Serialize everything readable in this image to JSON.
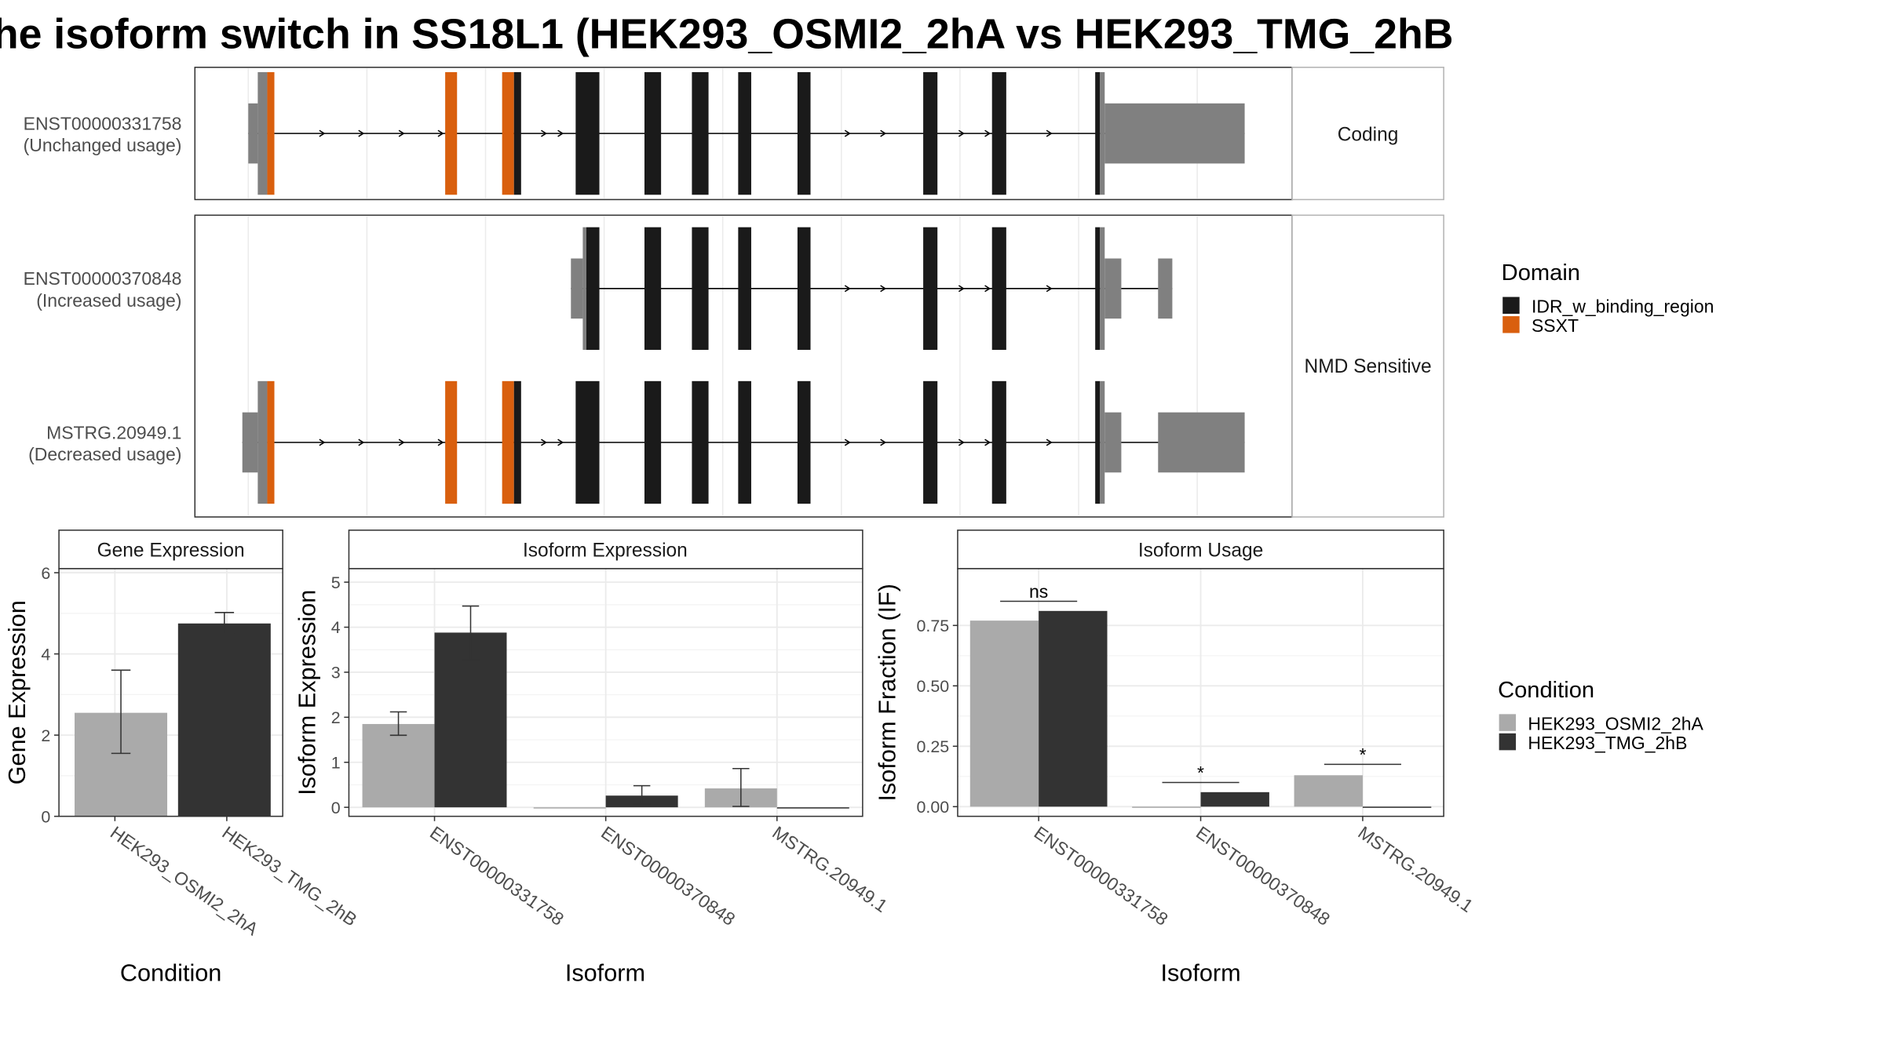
{
  "title": "he isoform switch in SS18L1 (HEK293_OSMI2_2hA vs HEK293_TMG_2hB",
  "colors": {
    "idr": "#1a1a1a",
    "ssxt": "#d95f0e",
    "utr": "#808080",
    "cond_a": "#aaaaaa",
    "cond_b": "#333333",
    "grid": "#ebebeb",
    "frame": "#333333",
    "strip_border": "#b3b3b3"
  },
  "transcripts": [
    {
      "id": "ENST00000331758",
      "usage": "(Unchanged usage)",
      "panel": "Coding",
      "exons": [
        {
          "start": 1000,
          "end": 1008,
          "type": "utr"
        },
        {
          "start": 1008,
          "end": 1016,
          "type": "cds"
        },
        {
          "start": 1016,
          "end": 1022,
          "type": "SSXT"
        },
        {
          "start": 1166,
          "end": 1176,
          "type": "SSXT"
        },
        {
          "start": 1214,
          "end": 1224,
          "type": "SSXT"
        },
        {
          "start": 1224,
          "end": 1230,
          "type": "IDR"
        },
        {
          "start": 1276,
          "end": 1296,
          "type": "IDR"
        },
        {
          "start": 1334,
          "end": 1348,
          "type": "IDR"
        },
        {
          "start": 1374,
          "end": 1388,
          "type": "IDR"
        },
        {
          "start": 1413,
          "end": 1424,
          "type": "IDR"
        },
        {
          "start": 1463,
          "end": 1474,
          "type": "IDR"
        },
        {
          "start": 1569,
          "end": 1581,
          "type": "IDR"
        },
        {
          "start": 1627,
          "end": 1639,
          "type": "IDR"
        },
        {
          "start": 1714,
          "end": 1718,
          "type": "IDR"
        },
        {
          "start": 1718,
          "end": 1722,
          "type": "cds"
        },
        {
          "start": 1722,
          "end": 1840,
          "type": "utr"
        }
      ],
      "arrows": [
        1063,
        1096,
        1130,
        1163,
        1250,
        1264,
        1506,
        1536,
        1602,
        1624,
        1676
      ]
    },
    {
      "id": "ENST00000370848",
      "usage": "(Increased usage)",
      "panel": "NMD Sensitive",
      "exons": [
        {
          "start": 1272,
          "end": 1282,
          "type": "utr"
        },
        {
          "start": 1282,
          "end": 1285,
          "type": "cds"
        },
        {
          "start": 1285,
          "end": 1296,
          "type": "IDR"
        },
        {
          "start": 1334,
          "end": 1348,
          "type": "IDR"
        },
        {
          "start": 1374,
          "end": 1388,
          "type": "IDR"
        },
        {
          "start": 1413,
          "end": 1424,
          "type": "IDR"
        },
        {
          "start": 1463,
          "end": 1474,
          "type": "IDR"
        },
        {
          "start": 1569,
          "end": 1581,
          "type": "IDR"
        },
        {
          "start": 1627,
          "end": 1639,
          "type": "IDR"
        },
        {
          "start": 1714,
          "end": 1718,
          "type": "IDR"
        },
        {
          "start": 1718,
          "end": 1722,
          "type": "cds"
        },
        {
          "start": 1722,
          "end": 1736,
          "type": "utr"
        },
        {
          "start": 1767,
          "end": 1779,
          "type": "utr"
        }
      ],
      "arrows": [
        1506,
        1536,
        1602,
        1624,
        1676
      ]
    },
    {
      "id": "MSTRG.20949.1",
      "usage": "(Decreased usage)",
      "panel": "NMD Sensitive",
      "exons": [
        {
          "start": 995,
          "end": 1008,
          "type": "utr"
        },
        {
          "start": 1008,
          "end": 1016,
          "type": "cds"
        },
        {
          "start": 1016,
          "end": 1022,
          "type": "SSXT"
        },
        {
          "start": 1166,
          "end": 1176,
          "type": "SSXT"
        },
        {
          "start": 1214,
          "end": 1224,
          "type": "SSXT"
        },
        {
          "start": 1224,
          "end": 1230,
          "type": "IDR"
        },
        {
          "start": 1276,
          "end": 1296,
          "type": "IDR"
        },
        {
          "start": 1334,
          "end": 1348,
          "type": "IDR"
        },
        {
          "start": 1374,
          "end": 1388,
          "type": "IDR"
        },
        {
          "start": 1413,
          "end": 1424,
          "type": "IDR"
        },
        {
          "start": 1463,
          "end": 1474,
          "type": "IDR"
        },
        {
          "start": 1569,
          "end": 1581,
          "type": "IDR"
        },
        {
          "start": 1627,
          "end": 1639,
          "type": "IDR"
        },
        {
          "start": 1714,
          "end": 1718,
          "type": "IDR"
        },
        {
          "start": 1718,
          "end": 1722,
          "type": "cds"
        },
        {
          "start": 1722,
          "end": 1736,
          "type": "utr"
        },
        {
          "start": 1767,
          "end": 1840,
          "type": "utr"
        }
      ],
      "arrows": [
        1063,
        1096,
        1130,
        1163,
        1250,
        1264,
        1506,
        1536,
        1602,
        1624,
        1676
      ]
    }
  ],
  "domain_legend": {
    "title": "Domain",
    "items": [
      {
        "label": "IDR_w_binding_region",
        "color": "#1a1a1a"
      },
      {
        "label": "SSXT",
        "color": "#d95f0e"
      }
    ]
  },
  "condition_legend": {
    "title": "Condition",
    "items": [
      {
        "label": "HEK293_OSMI2_2hA",
        "color": "#aaaaaa"
      },
      {
        "label": "HEK293_TMG_2hB",
        "color": "#333333"
      }
    ]
  },
  "chart_data": [
    {
      "type": "bar",
      "title": "Gene Expression",
      "xlabel": "Condition",
      "ylabel": "Gene Expression",
      "ylim": [
        0,
        6.1
      ],
      "yticks": [
        0,
        2,
        4,
        6
      ],
      "grid": true,
      "categories": [
        "HEK293_OSMI2_2hA",
        "HEK293_TMG_2hB"
      ],
      "values": [
        2.55,
        4.75
      ],
      "errors": [
        [
          1.55,
          3.6
        ],
        [
          4.5,
          5.02
        ]
      ],
      "colors": [
        "#aaaaaa",
        "#333333"
      ]
    },
    {
      "type": "bar",
      "title": "Isoform Expression",
      "xlabel": "Isoform",
      "ylabel": "Isoform Expression",
      "ylim": [
        -0.2,
        5.3
      ],
      "yticks": [
        0,
        1,
        2,
        3,
        4,
        5
      ],
      "grid": true,
      "categories": [
        "ENST00000331758",
        "ENST00000370848",
        "MSTRG.20949.1"
      ],
      "series": [
        {
          "name": "HEK293_OSMI2_2hA",
          "values": [
            1.85,
            0.0,
            0.42
          ],
          "errors": [
            [
              1.6,
              2.12
            ],
            [
              0,
              0
            ],
            [
              0.02,
              0.86
            ]
          ]
        },
        {
          "name": "HEK293_TMG_2hB",
          "values": [
            3.88,
            0.26,
            0.0
          ],
          "errors": [
            [
              3.28,
              4.47
            ],
            [
              0.07,
              0.48
            ],
            [
              0,
              0
            ]
          ]
        }
      ]
    },
    {
      "type": "bar",
      "title": "Isoform Usage",
      "xlabel": "Isoform",
      "ylabel": "Isoform Fraction (IF)",
      "ylim": [
        -0.04,
        0.985
      ],
      "yticks": [
        "0.00",
        "0.25",
        "0.50",
        "0.75"
      ],
      "grid": true,
      "categories": [
        "ENST00000331758",
        "ENST00000370848",
        "MSTRG.20949.1"
      ],
      "series": [
        {
          "name": "HEK293_OSMI2_2hA",
          "values": [
            0.77,
            0.0,
            0.13
          ]
        },
        {
          "name": "HEK293_TMG_2hB",
          "values": [
            0.81,
            0.06,
            0.0
          ]
        }
      ],
      "annotations": [
        {
          "category": 0,
          "label": "ns",
          "level": 0.85
        },
        {
          "category": 1,
          "label": "*",
          "level": 0.1
        },
        {
          "category": 2,
          "label": "*",
          "level": 0.175
        }
      ]
    }
  ]
}
